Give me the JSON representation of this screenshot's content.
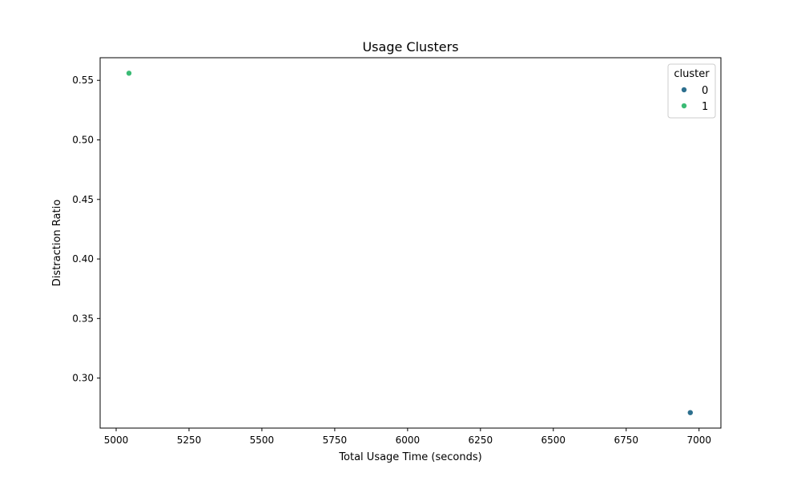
{
  "chart_data": {
    "type": "scatter",
    "title": "Usage Clusters",
    "xlabel": "Total Usage Time (seconds)",
    "ylabel": "Distraction Ratio",
    "xlim": [
      4945,
      7075
    ],
    "ylim": [
      0.258,
      0.569
    ],
    "xticks": [
      5000,
      5250,
      5500,
      5750,
      6000,
      6250,
      6500,
      6750,
      7000
    ],
    "yticks": [
      0.3,
      0.35,
      0.4,
      0.45,
      0.5,
      0.55
    ],
    "grid": false,
    "legend": {
      "title": "cluster",
      "placement": "top-right",
      "entries": [
        {
          "label": "0",
          "color": "#2d6f8e"
        },
        {
          "label": "1",
          "color": "#3bbb75"
        }
      ]
    },
    "points": [
      {
        "x": 5044,
        "y": 0.556,
        "cluster": "1"
      },
      {
        "x": 6970,
        "y": 0.271,
        "cluster": "0"
      }
    ]
  }
}
